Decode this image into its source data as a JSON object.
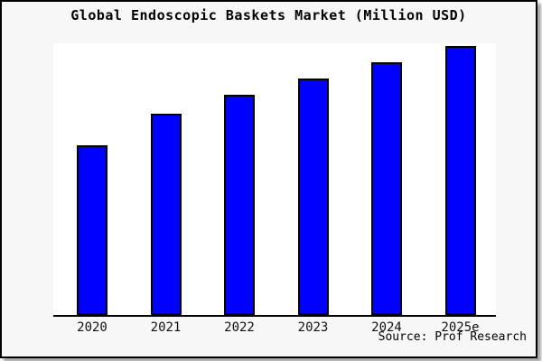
{
  "title": "Global Endoscopic Baskets Market (Million USD)",
  "source": "Source: Prof Research",
  "colors": {
    "figure_background": "#f7f7f7",
    "plot_background": "#ffffff",
    "bar_fill": "#0000ff",
    "bar_border": "#000000",
    "axis": "#000000",
    "frame_border": "#000000"
  },
  "chart_data": {
    "type": "bar",
    "title": "Global Endoscopic Baskets Market (Million USD)",
    "categories": [
      "2020",
      "2021",
      "2022",
      "2023",
      "2024",
      "2025e"
    ],
    "values": [
      63,
      75,
      82,
      88,
      94,
      100
    ],
    "xlabel": "",
    "ylabel": "",
    "ylim": [
      0,
      100
    ],
    "values_note": "y-axis has no tick labels or gridlines; values are relative bar heights estimated from pixels with 2025e normalized to 100",
    "legend": "none",
    "grid": false,
    "bar_color": "#0000ff",
    "bar_border_color": "#000000"
  }
}
